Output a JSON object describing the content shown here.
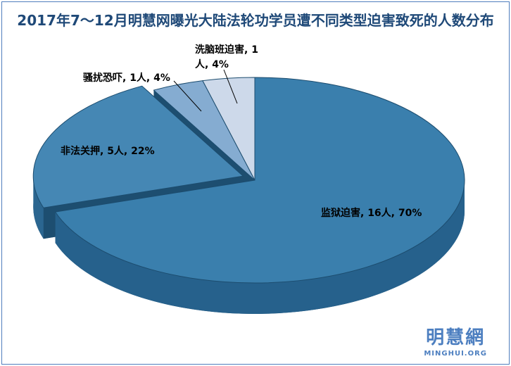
{
  "chart_data": {
    "type": "pie",
    "title": "2017年7～12月明慧网曝光大陆法轮功学员遭不同类型迫害致死的人数分布",
    "start_angle_deg": -90,
    "direction": "clockwise",
    "base_color": "#1d4e70",
    "edge_color": "#1c4c6e",
    "slices": [
      {
        "label": "监狱迫害",
        "count": 16,
        "percent": 70,
        "label_text": "监狱迫害, 16人, 70%",
        "color": "#3a7fad",
        "side": "#26618c",
        "explode": false
      },
      {
        "label": "非法关押",
        "count": 5,
        "percent": 22,
        "label_text": "非法关押, 5人, 22%",
        "color": "#4587b4",
        "side": "#2b6690",
        "explode": true
      },
      {
        "label": "骚扰恐吓",
        "count": 1,
        "percent": 4,
        "label_text": "骚扰恐吓, 1人, 4%",
        "color": "#85acd1",
        "side": "#5d87ad",
        "explode": false
      },
      {
        "label": "洗脑班迫害",
        "count": 1,
        "percent": 4,
        "label_text": "洗脑班迫害, 1人, 4%",
        "color": "#cdd9ea",
        "side": "#9fb4cd",
        "explode": false
      }
    ]
  },
  "logo": {
    "cn": "明慧網",
    "en": "MINGHUI.ORG"
  },
  "colors": {
    "frame": "#4f7dbd",
    "title": "#1f4978",
    "logo": "#4d7fc0",
    "label": "#000000"
  }
}
